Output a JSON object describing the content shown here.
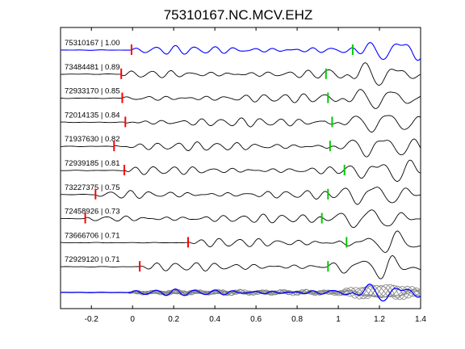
{
  "chart_data": {
    "type": "line",
    "title": "75310167.NC.MCV.EHZ",
    "xlabel": "",
    "ylabel": "",
    "xlim": [
      -0.35,
      1.4
    ],
    "xticks": [
      "-0.2",
      "0",
      "0.2",
      "0.4",
      "0.6",
      "0.8",
      "1",
      "1.2",
      "1.4"
    ],
    "grid": false,
    "colors": {
      "reference_trace": "#0000ff",
      "trace": "#000000",
      "stack_trace": "#808080",
      "p_pick": "#ff0000",
      "s_pick": "#00cc00"
    },
    "traces": [
      {
        "label": "75310167 | 1.00",
        "p_time": -0.005,
        "s_time": 1.07,
        "reference": true
      },
      {
        "label": "73484481 | 0.89",
        "p_time": -0.055,
        "s_time": 0.94
      },
      {
        "label": "72933170 | 0.85",
        "p_time": -0.05,
        "s_time": 0.95
      },
      {
        "label": "72014135 | 0.84",
        "p_time": -0.035,
        "s_time": 0.97
      },
      {
        "label": "71937630 | 0.82",
        "p_time": -0.09,
        "s_time": 0.96
      },
      {
        "label": "72939185 | 0.81",
        "p_time": -0.04,
        "s_time": 1.03
      },
      {
        "label": "73227375 | 0.75",
        "p_time": -0.18,
        "s_time": 0.95
      },
      {
        "label": "72458926 | 0.73",
        "p_time": -0.23,
        "s_time": 0.92
      },
      {
        "label": "73666706 | 0.71",
        "p_time": 0.27,
        "s_time": 1.04
      },
      {
        "label": "72929120 | 0.71",
        "p_time": 0.035,
        "s_time": 0.95
      }
    ]
  }
}
